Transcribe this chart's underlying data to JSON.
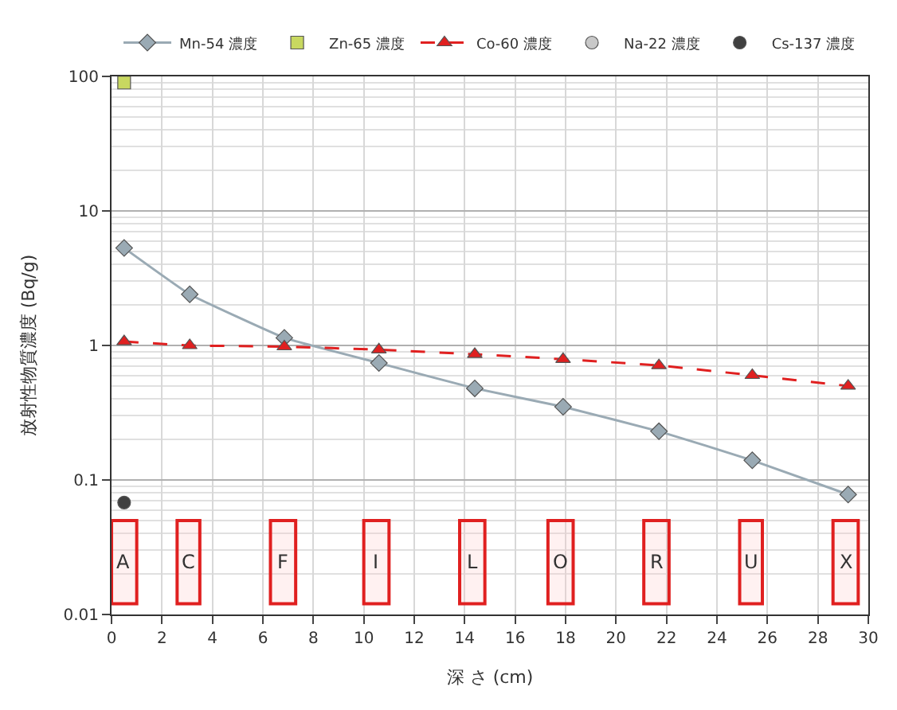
{
  "chart_data": {
    "type": "line",
    "xlabel": "深 さ (cm)",
    "ylabel": "放射性物質濃度 (Bq/g)",
    "log": "y",
    "grid": true,
    "legend": "top",
    "xlim": [
      0,
      30
    ],
    "xticks": [
      0,
      2,
      4,
      6,
      8,
      10,
      12,
      14,
      16,
      18,
      20,
      22,
      24,
      26,
      28,
      30
    ],
    "ylim": [
      0.01,
      100
    ],
    "yticks": [
      0.01,
      0.1,
      1,
      10,
      100
    ],
    "series": [
      {
        "name": "Mn-54 濃度",
        "color": "#9aaab4",
        "marker": "diamond",
        "line_style": "solid",
        "x": [
          0.5,
          3.1,
          6.85,
          10.6,
          14.4,
          17.9,
          21.7,
          25.4,
          29.2
        ],
        "values": [
          5.3,
          2.4,
          1.14,
          0.74,
          0.48,
          0.35,
          0.23,
          0.14,
          0.078
        ]
      },
      {
        "name": "Zn-65 濃度",
        "type": "scatter",
        "color": "#c8d860",
        "marker": "square",
        "x": [
          0.5
        ],
        "values": [
          90
        ]
      },
      {
        "name": "Co-60 濃度",
        "color": "#e02020",
        "marker": "triangle",
        "line_style": "dashed",
        "x": [
          0.5,
          3.1,
          6.85,
          10.6,
          14.4,
          17.9,
          21.7,
          25.4,
          29.2
        ],
        "values": [
          1.07,
          1.0,
          0.98,
          0.93,
          0.86,
          0.79,
          0.71,
          0.6,
          0.5
        ]
      },
      {
        "name": "Na-22 濃度",
        "type": "scatter",
        "color": "#c8c8c8",
        "marker": "circle"
      },
      {
        "name": "Cs-137 濃度",
        "type": "scatter",
        "color": "#404040",
        "marker": "circle",
        "x": [
          0.5
        ],
        "values": [
          0.068
        ]
      }
    ],
    "bands": [
      {
        "axis": "x",
        "from": 0,
        "to": 1,
        "label": "A",
        "color": "#e02020"
      },
      {
        "axis": "x",
        "from": 2.6,
        "to": 3.5,
        "label": "C",
        "color": "#e02020"
      },
      {
        "axis": "x",
        "from": 6.3,
        "to": 7.3,
        "label": "F",
        "color": "#e02020"
      },
      {
        "axis": "x",
        "from": 10,
        "to": 11,
        "label": "I",
        "color": "#e02020"
      },
      {
        "axis": "x",
        "from": 13.8,
        "to": 14.8,
        "label": "L",
        "color": "#e02020"
      },
      {
        "axis": "x",
        "from": 17.3,
        "to": 18.3,
        "label": "O",
        "color": "#e02020"
      },
      {
        "axis": "x",
        "from": 21.1,
        "to": 22.1,
        "label": "R",
        "color": "#e02020"
      },
      {
        "axis": "x",
        "from": 24.9,
        "to": 25.8,
        "label": "U",
        "color": "#e02020"
      },
      {
        "axis": "x",
        "from": 28.6,
        "to": 29.6,
        "label": "X",
        "color": "#e02020"
      }
    ]
  }
}
